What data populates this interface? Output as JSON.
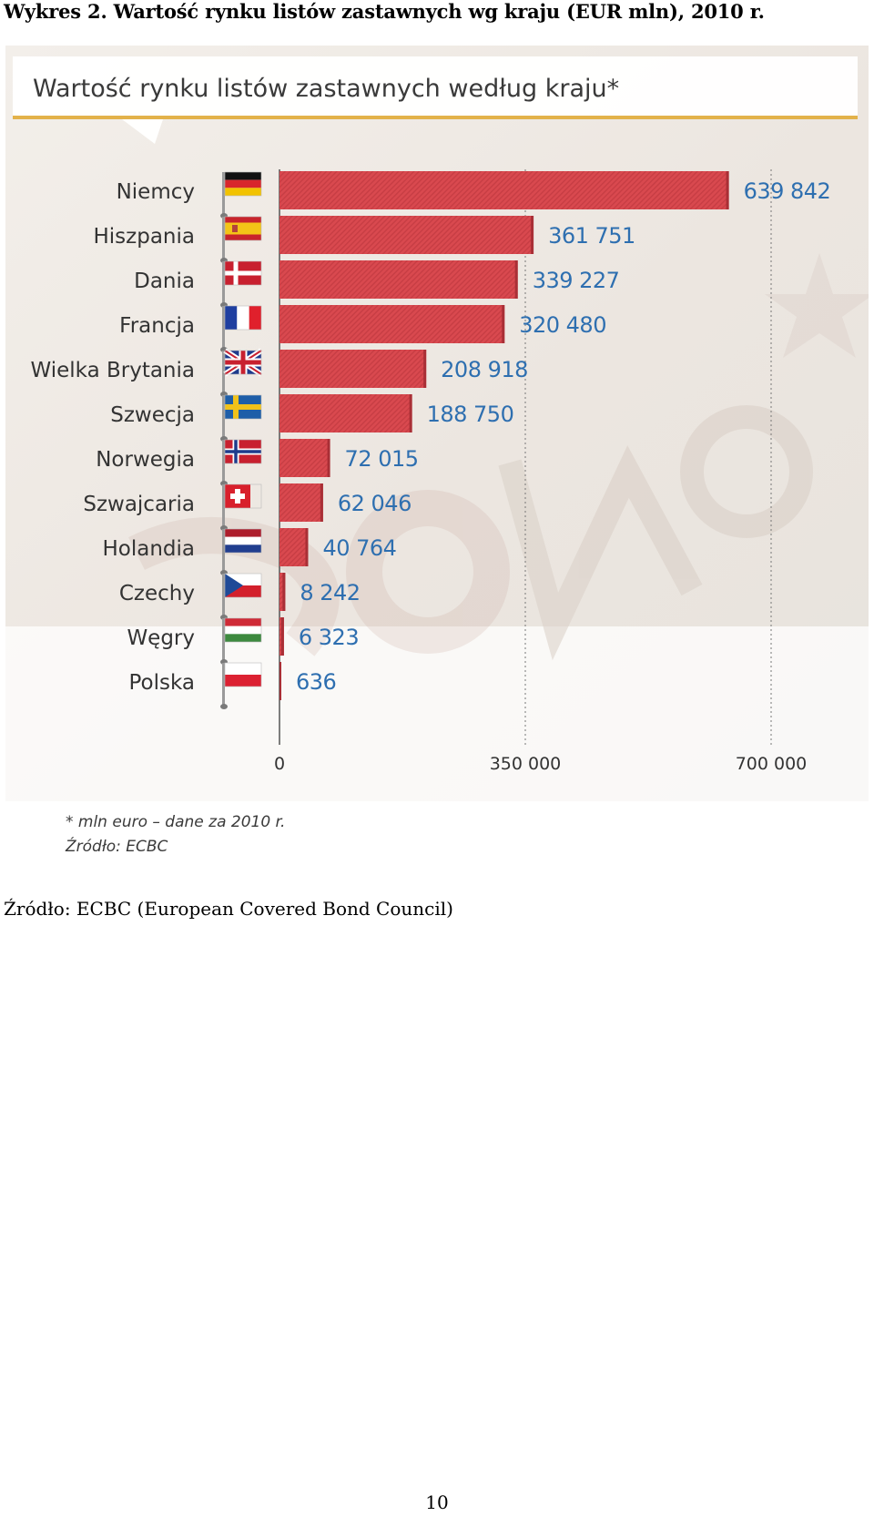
{
  "caption": "Wykres 2. Wartość rynku listów zastawnych wg kraju (EUR mln), 2010 r.",
  "source_line": "Źródło: ECBC (European Covered Bond Council)",
  "page_number": "10",
  "chart_data": {
    "type": "bar",
    "orientation": "horizontal",
    "title": "Wartość rynku listów zastawnych według kraju*",
    "categories": [
      "Niemcy",
      "Hiszpania",
      "Dania",
      "Francja",
      "Wielka Brytania",
      "Szwecja",
      "Norwegia",
      "Szwajcaria",
      "Holandia",
      "Czechy",
      "Węgry",
      "Polska"
    ],
    "values": [
      639842,
      361751,
      339227,
      320480,
      208918,
      188750,
      72015,
      62046,
      40764,
      8242,
      6323,
      636
    ],
    "value_labels": [
      "639 842",
      "361 751",
      "339 227",
      "320 480",
      "208 918",
      "188 750",
      "72 015",
      "62 046",
      "40 764",
      "8 242",
      "6 323",
      "636"
    ],
    "flags": [
      "germany-flag-icon",
      "spain-flag-icon",
      "denmark-flag-icon",
      "france-flag-icon",
      "uk-flag-icon",
      "sweden-flag-icon",
      "norway-flag-icon",
      "switzerland-flag-icon",
      "netherlands-flag-icon",
      "czech-flag-icon",
      "hungary-flag-icon",
      "poland-flag-icon"
    ],
    "xlim": [
      0,
      700000
    ],
    "x_ticks": [
      0,
      350000,
      700000
    ],
    "x_tick_labels": [
      "0",
      "350 000",
      "700 000"
    ],
    "gridlines": "dotted at 350 000 and 700 000",
    "footnote": "* mln euro – dane za 2010 r.",
    "source": "Źródło: ECBC",
    "colors": {
      "bar": "#d9494f",
      "bar_dark": "#a92f36",
      "value_label": "#2e6fb0",
      "category_label": "#333333",
      "title_bar_underline": "#e3b24a"
    }
  }
}
